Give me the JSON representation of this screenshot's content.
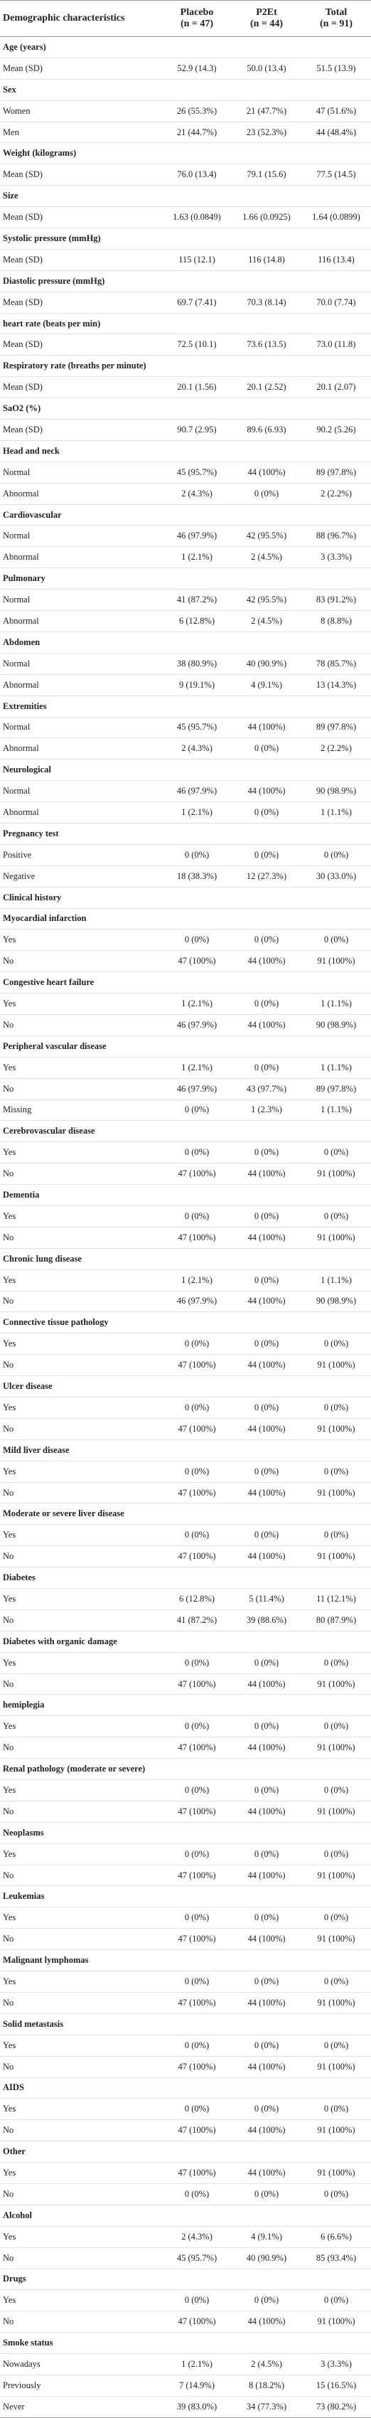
{
  "table": {
    "columns": [
      {
        "name": "Demographic characteristics"
      },
      {
        "name": "Placebo",
        "n": "(n = 47)"
      },
      {
        "name": "P2Et",
        "n": "(n = 44)"
      },
      {
        "name": "Total",
        "n": "(n = 91)"
      }
    ],
    "rows": [
      [
        "Age (years)"
      ],
      [
        "Mean (SD)",
        "52.9 (14.3)",
        "50.0 (13.4)",
        "51.5 (13.9)"
      ],
      [
        "Sex"
      ],
      [
        "Women",
        "26 (55.3%)",
        "21 (47.7%)",
        "47 (51.6%)"
      ],
      [
        "Men",
        "21 (44.7%)",
        "23 (52.3%)",
        "44 (48.4%)"
      ],
      [
        "Weight (kilograms)"
      ],
      [
        "Mean (SD)",
        "76.0 (13.4)",
        "79.1 (15.6)",
        "77.5 (14.5)"
      ],
      [
        "Size"
      ],
      [
        "Mean (SD)",
        "1.63 (0.0849)",
        "1.66 (0.0925)",
        "1.64 (0.0899)"
      ],
      [
        "Systolic pressure (mmHg)"
      ],
      [
        "Mean (SD)",
        "115 (12.1)",
        "116 (14.8)",
        "116 (13.4)"
      ],
      [
        "Diastolic pressure (mmHg)"
      ],
      [
        "Mean (SD)",
        "69.7 (7.41)",
        "70.3 (8.14)",
        "70.0 (7.74)"
      ],
      [
        "heart rate (beats per min)"
      ],
      [
        "Mean (SD)",
        "72.5 (10.1)",
        "73.6 (13.5)",
        "73.0 (11.8)"
      ],
      [
        "Respiratory rate (breaths per minute)"
      ],
      [
        "Mean (SD)",
        "20.1 (1.56)",
        "20.1 (2.52)",
        "20.1 (2.07)"
      ],
      [
        "SaO2 (%)"
      ],
      [
        "Mean (SD)",
        "90.7 (2.95)",
        "89.6 (6.93)",
        "90.2 (5.26)"
      ],
      [
        "Head and neck"
      ],
      [
        "Normal",
        "45 (95.7%)",
        "44 (100%)",
        "89 (97.8%)"
      ],
      [
        "Abnormal",
        "2 (4.3%)",
        "0 (0%)",
        "2 (2.2%)"
      ],
      [
        "Cardiovascular"
      ],
      [
        "Normal",
        "46 (97.9%)",
        "42 (95.5%)",
        "88 (96.7%)"
      ],
      [
        "Abnormal",
        "1 (2.1%)",
        "2 (4.5%)",
        "3 (3.3%)"
      ],
      [
        "Pulmonary"
      ],
      [
        "Normal",
        "41 (87.2%)",
        "42 (95.5%)",
        "83 (91.2%)"
      ],
      [
        "Abnormal",
        "6 (12.8%)",
        "2 (4.5%)",
        "8 (8.8%)"
      ],
      [
        "Abdomen"
      ],
      [
        "Normal",
        "38 (80.9%)",
        "40 (90.9%)",
        "78 (85.7%)"
      ],
      [
        "Abnormal",
        "9 (19.1%)",
        "4 (9.1%)",
        "13 (14.3%)"
      ],
      [
        "Extremities"
      ],
      [
        "Normal",
        "45 (95.7%)",
        "44 (100%)",
        "89 (97.8%)"
      ],
      [
        "Abnormal",
        "2 (4.3%)",
        "0 (0%)",
        "2 (2.2%)"
      ],
      [
        "Neurological"
      ],
      [
        "Normal",
        "46 (97.9%)",
        "44 (100%)",
        "90 (98.9%)"
      ],
      [
        "Abnormal",
        "1 (2.1%)",
        "0 (0%)",
        "1 (1.1%)"
      ],
      [
        "Pregnancy test"
      ],
      [
        "Positive",
        "0 (0%)",
        "0 (0%)",
        "0 (0%)"
      ],
      [
        "Negative",
        "18 (38.3%)",
        "12 (27.3%)",
        "30 (33.0%)"
      ],
      [
        "Clinical history"
      ],
      [
        "Myocardial infarction"
      ],
      [
        "Yes",
        "0 (0%)",
        "0 (0%)",
        "0 (0%)"
      ],
      [
        "No",
        "47 (100%)",
        "44 (100%)",
        "91 (100%)"
      ],
      [
        "Congestive heart failure"
      ],
      [
        "Yes",
        "1 (2.1%)",
        "0 (0%)",
        "1 (1.1%)"
      ],
      [
        "No",
        "46 (97.9%)",
        "44 (100%)",
        "90 (98.9%)"
      ],
      [
        "Peripheral vascular disease"
      ],
      [
        "Yes",
        "1 (2.1%)",
        "0 (0%)",
        "1 (1.1%)"
      ],
      [
        "No",
        "46 (97.9%)",
        "43 (97.7%)",
        "89 (97.8%)"
      ],
      [
        "Missing",
        "0 (0%)",
        "1 (2.3%)",
        "1 (1.1%)"
      ],
      [
        "Cerebrovascular disease"
      ],
      [
        "Yes",
        "0 (0%)",
        "0 (0%)",
        "0 (0%)"
      ],
      [
        "No",
        "47 (100%)",
        "44 (100%)",
        "91 (100%)"
      ],
      [
        "Dementia"
      ],
      [
        "Yes",
        "0 (0%)",
        "0 (0%)",
        "0 (0%)"
      ],
      [
        "No",
        "47 (100%)",
        "44 (100%)",
        "91 (100%)"
      ],
      [
        "Chronic lung disease"
      ],
      [
        "Yes",
        "1 (2.1%)",
        "0 (0%)",
        "1 (1.1%)"
      ],
      [
        "No",
        "46 (97.9%)",
        "44 (100%)",
        "90 (98.9%)"
      ],
      [
        "Connective tissue pathology"
      ],
      [
        "Yes",
        "0 (0%)",
        "0 (0%)",
        "0 (0%)"
      ],
      [
        "No",
        "47 (100%)",
        "44 (100%)",
        "91 (100%)"
      ],
      [
        "Ulcer disease"
      ],
      [
        "Yes",
        "0 (0%)",
        "0 (0%)",
        "0 (0%)"
      ],
      [
        "No",
        "47 (100%)",
        "44 (100%)",
        "91 (100%)"
      ],
      [
        "Mild liver disease"
      ],
      [
        "Yes",
        "0 (0%)",
        "0 (0%)",
        "0 (0%)"
      ],
      [
        "No",
        "47 (100%)",
        "44 (100%)",
        "91 (100%)"
      ],
      [
        "Moderate or severe liver disease"
      ],
      [
        "Yes",
        "0 (0%)",
        "0 (0%)",
        "0 (0%)"
      ],
      [
        "No",
        "47 (100%)",
        "44 (100%)",
        "91 (100%)"
      ],
      [
        "Diabetes"
      ],
      [
        "Yes",
        "6 (12.8%)",
        "5 (11.4%)",
        "11 (12.1%)"
      ],
      [
        "No",
        "41 (87.2%)",
        "39 (88.6%)",
        "80 (87.9%)"
      ],
      [
        "Diabetes with organic damage"
      ],
      [
        "Yes",
        "0 (0%)",
        "0 (0%)",
        "0 (0%)"
      ],
      [
        "No",
        "47 (100%)",
        "44 (100%)",
        "91 (100%)"
      ],
      [
        "hemiplegia"
      ],
      [
        "Yes",
        "0 (0%)",
        "0 (0%)",
        "0 (0%)"
      ],
      [
        "No",
        "47 (100%)",
        "44 (100%)",
        "91 (100%)"
      ],
      [
        "Renal pathology (moderate or severe)"
      ],
      [
        "Yes",
        "0 (0%)",
        "0 (0%)",
        "0 (0%)"
      ],
      [
        "No",
        "47 (100%)",
        "44 (100%)",
        "91 (100%)"
      ],
      [
        "Neoplasms"
      ],
      [
        "Yes",
        "0 (0%)",
        "0 (0%)",
        "0 (0%)"
      ],
      [
        "No",
        "47 (100%)",
        "44 (100%)",
        "91 (100%)"
      ],
      [
        "Leukemias"
      ],
      [
        "Yes",
        "0 (0%)",
        "0 (0%)",
        "0 (0%)"
      ],
      [
        "No",
        "47 (100%)",
        "44 (100%)",
        "91 (100%)"
      ],
      [
        "Malignant lymphomas"
      ],
      [
        "Yes",
        "0 (0%)",
        "0 (0%)",
        "0 (0%)"
      ],
      [
        "No",
        "47 (100%)",
        "44 (100%)",
        "91 (100%)"
      ],
      [
        "Solid metastasis"
      ],
      [
        "Yes",
        "0 (0%)",
        "0 (0%)",
        "0 (0%)"
      ],
      [
        "No",
        "47 (100%)",
        "44 (100%)",
        "91 (100%)"
      ],
      [
        "AIDS"
      ],
      [
        "Yes",
        "0 (0%)",
        "0 (0%)",
        "0 (0%)"
      ],
      [
        "No",
        "47 (100%)",
        "44 (100%)",
        "91 (100%)"
      ],
      [
        "Other"
      ],
      [
        "Yes",
        "47 (100%)",
        "44 (100%)",
        "91 (100%)"
      ],
      [
        "No",
        "0 (0%)",
        "0 (0%)",
        "0 (0%)"
      ],
      [
        "Alcohol"
      ],
      [
        "Yes",
        "2 (4.3%)",
        "4 (9.1%)",
        "6 (6.6%)"
      ],
      [
        "No",
        "45 (95.7%)",
        "40 (90.9%)",
        "85 (93.4%)"
      ],
      [
        "Drugs"
      ],
      [
        "Yes",
        "0 (0%)",
        "0 (0%)",
        "0 (0%)"
      ],
      [
        "No",
        "47 (100%)",
        "44 (100%)",
        "91 (100%)"
      ],
      [
        "Smoke status"
      ],
      [
        "Nowadays",
        "1 (2.1%)",
        "2 (4.5%)",
        "3 (3.3%)"
      ],
      [
        "Previously",
        "7 (14.9%)",
        "8 (18.2%)",
        "15 (16.5%)"
      ],
      [
        "Never",
        "39 (83.0%)",
        "34 (77.3%)",
        "73 (80.2%)"
      ]
    ]
  }
}
